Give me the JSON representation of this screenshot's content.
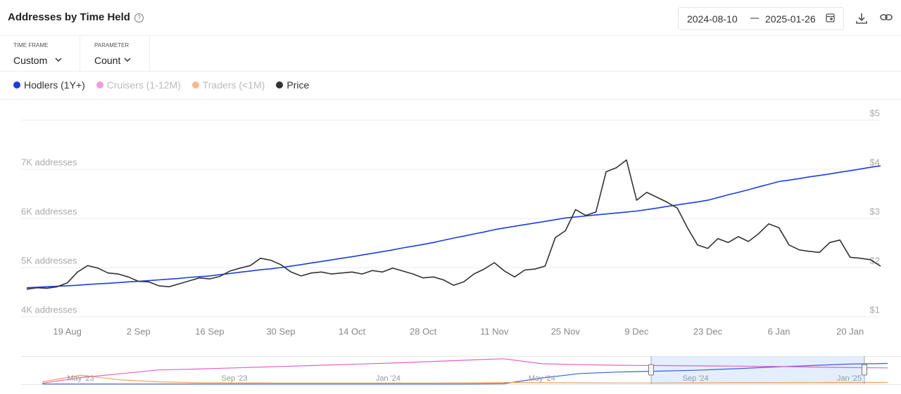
{
  "header": {
    "title": "Addresses by Time Held",
    "date_range": {
      "start": "2024-08-10",
      "end": "2025-01-26"
    }
  },
  "controls": [
    {
      "label": "TIME FRAME",
      "value": "Custom"
    },
    {
      "label": "PARAMETER",
      "value": "Count"
    }
  ],
  "chart_data": [
    {
      "type": "line",
      "categories": [
        null,
        null,
        null,
        null,
        "19 Aug",
        null,
        null,
        null,
        null,
        null,
        null,
        "2 Sep",
        null,
        null,
        null,
        null,
        null,
        null,
        "16 Sep",
        null,
        null,
        null,
        null,
        null,
        null,
        "30 Sep",
        null,
        null,
        null,
        null,
        null,
        null,
        "14 Oct",
        null,
        null,
        null,
        null,
        null,
        null,
        "28 Oct",
        null,
        null,
        null,
        null,
        null,
        null,
        "11 Nov",
        null,
        null,
        null,
        null,
        null,
        null,
        "25 Nov",
        null,
        null,
        null,
        null,
        null,
        null,
        "9 Dec",
        null,
        null,
        null,
        null,
        null,
        null,
        "23 Dec",
        null,
        null,
        null,
        null,
        null,
        null,
        "6 Jan",
        null,
        null,
        null,
        null,
        null,
        null,
        "20 Jan",
        null,
        null,
        null
      ],
      "series": [
        {
          "name": "Hodlers (1Y+)",
          "color": "#1a3ee0",
          "axis": "y",
          "visible": true,
          "values": [
            4590,
            4600,
            4610,
            4620,
            4630,
            4640,
            4655,
            4670,
            4680,
            4695,
            4710,
            4720,
            4735,
            4750,
            4765,
            4780,
            4800,
            4815,
            4830,
            4855,
            4880,
            4905,
            4930,
            4955,
            4975,
            5000,
            5030,
            5060,
            5095,
            5125,
            5155,
            5190,
            5220,
            5255,
            5290,
            5325,
            5360,
            5400,
            5435,
            5470,
            5510,
            5555,
            5600,
            5640,
            5685,
            5725,
            5770,
            5805,
            5840,
            5875,
            5905,
            5940,
            5975,
            6010,
            6030,
            6050,
            6070,
            6090,
            6110,
            6130,
            6150,
            6180,
            6210,
            6245,
            6275,
            6305,
            6335,
            6370,
            6425,
            6480,
            6530,
            6585,
            6640,
            6695,
            6750,
            6780,
            6810,
            6845,
            6875,
            6905,
            6940,
            6970,
            7005,
            7040,
            7070
          ]
        },
        {
          "name": "Cruisers (1-12M)",
          "color": "#f59ad6",
          "axis": "y",
          "visible": false
        },
        {
          "name": "Traders (<1M)",
          "color": "#f7b98a",
          "axis": "y",
          "visible": false
        },
        {
          "name": "Price",
          "color": "#333333",
          "axis": "y2",
          "visible": true,
          "values": [
            1.56,
            1.59,
            1.58,
            1.61,
            1.69,
            1.91,
            2.04,
            1.99,
            1.89,
            1.87,
            1.81,
            1.72,
            1.71,
            1.63,
            1.61,
            1.67,
            1.73,
            1.79,
            1.77,
            1.82,
            1.93,
            1.99,
            2.04,
            2.19,
            2.15,
            2.06,
            1.91,
            1.83,
            1.89,
            1.91,
            1.87,
            1.89,
            1.91,
            1.87,
            1.94,
            1.91,
            1.99,
            1.93,
            1.87,
            1.79,
            1.81,
            1.75,
            1.64,
            1.71,
            1.87,
            1.97,
            2.1,
            1.93,
            1.81,
            1.95,
            1.97,
            2.03,
            2.61,
            2.75,
            3.18,
            3.06,
            3.13,
            3.95,
            4.03,
            4.19,
            3.37,
            3.53,
            3.43,
            3.33,
            3.21,
            2.81,
            2.46,
            2.39,
            2.59,
            2.51,
            2.63,
            2.53,
            2.69,
            2.89,
            2.81,
            2.46,
            2.36,
            2.33,
            2.31,
            2.51,
            2.56,
            2.21,
            2.19,
            2.16,
            2.03
          ]
        }
      ],
      "ylim": [
        4000,
        8000
      ],
      "yticks": [
        {
          "value": 4000,
          "label": "4K addresses"
        },
        {
          "value": 5000,
          "label": "5K addresses"
        },
        {
          "value": 6000,
          "label": "6K addresses"
        },
        {
          "value": 7000,
          "label": "7K addresses"
        }
      ],
      "y2lim": [
        1,
        5
      ],
      "y2ticks": [
        {
          "value": 1,
          "label": "$1"
        },
        {
          "value": 2,
          "label": "$2"
        },
        {
          "value": 3,
          "label": "$3"
        },
        {
          "value": 4,
          "label": "$4"
        },
        {
          "value": 5,
          "label": "$5"
        }
      ],
      "grid": "y2"
    },
    {
      "type": "line",
      "categories": [
        null,
        "May '23",
        null,
        null,
        null,
        "Sep '23",
        null,
        null,
        null,
        "Jan '24",
        null,
        null,
        null,
        "May '24",
        null,
        null,
        null,
        "Sep '24",
        null,
        null,
        null,
        "Jan '25",
        null
      ],
      "series": [
        {
          "color": "#3a5fe0",
          "values": [
            50,
            50,
            50,
            50,
            50,
            50,
            50,
            50,
            50,
            50,
            50,
            50,
            150,
            2100,
            3600,
            4100,
            4400,
            4700,
            5200,
            5800,
            6300,
            6800,
            7000
          ]
        },
        {
          "color": "#e65fc8",
          "values": [
            300,
            2200,
            3500,
            4800,
            5100,
            5500,
            5900,
            6300,
            6700,
            7100,
            7600,
            8100,
            8600,
            6900,
            6600,
            6400,
            6300,
            6200,
            6100,
            6000,
            5800,
            5600,
            5500
          ]
        },
        {
          "color": "#f0a060",
          "values": [
            800,
            3000,
            1500,
            800,
            500,
            450,
            400,
            400,
            400,
            400,
            400,
            450,
            600,
            500,
            450,
            400,
            400,
            450,
            500,
            500,
            550,
            600,
            600
          ]
        }
      ],
      "ylim": [
        0,
        9500
      ]
    }
  ]
}
